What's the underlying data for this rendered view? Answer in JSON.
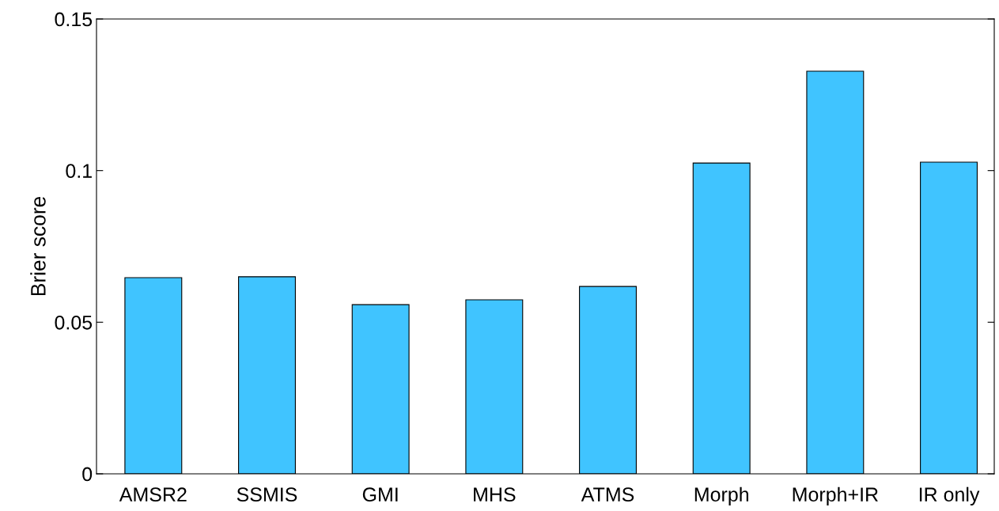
{
  "chart_data": {
    "type": "bar",
    "ylabel": "Brier score",
    "categories": [
      "AMSR2",
      "SSMIS",
      "GMI",
      "MHS",
      "ATMS",
      "Morph",
      "Morph+IR",
      "IR only"
    ],
    "values": [
      0.0647,
      0.065,
      0.0558,
      0.0574,
      0.0618,
      0.1025,
      0.1328,
      0.1028
    ],
    "color": "#40c4ff",
    "ylim": [
      0,
      0.15
    ],
    "yticks": [
      0,
      {
        "value": 0.05,
        "label": "0.05"
      },
      {
        "value": 0.1,
        "label": "0.1"
      },
      {
        "value": 0.15,
        "label": "0.15"
      }
    ],
    "grid": false
  }
}
